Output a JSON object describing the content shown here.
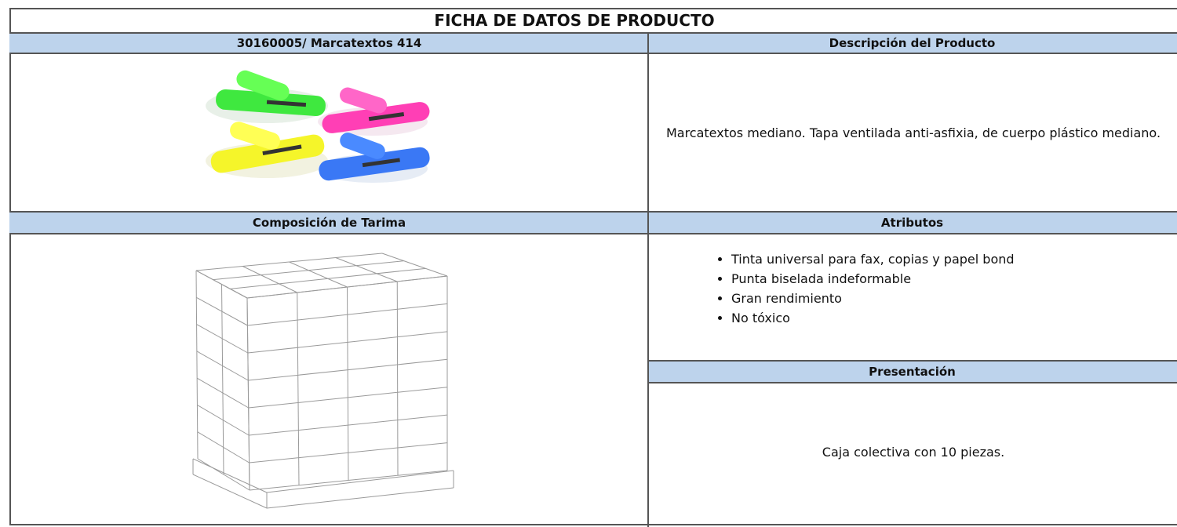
{
  "title": "FICHA DE DATOS DE PRODUCTO",
  "product_header": "30160005/ Marcatextos 414",
  "description_header": "Descripción del Producto",
  "description": "Marcatextos mediano. Tapa ventilada anti-asfixia, de cuerpo plástico mediano.",
  "pallet_header": "Composición de Tarima",
  "attributes_header": "Atributos",
  "attributes": [
    "Tinta universal para fax, copias y papel bond",
    "Punta biselada indeformable",
    "Gran rendimiento",
    "No tóxico"
  ],
  "presentation_header": "Presentación",
  "presentation": "Caja colectiva con 10 piezas."
}
